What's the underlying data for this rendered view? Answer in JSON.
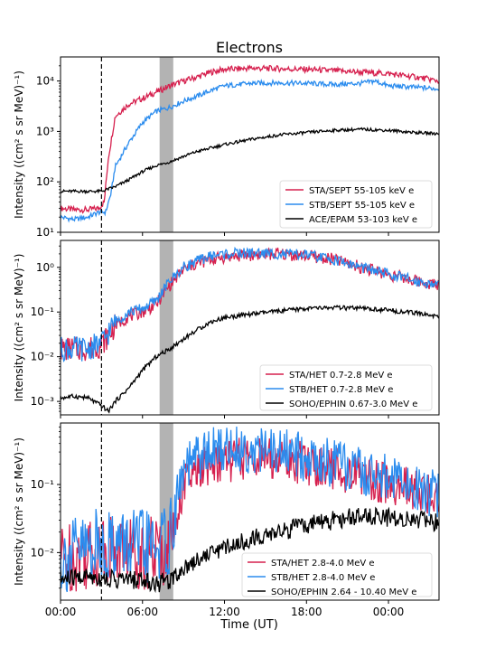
{
  "figure_title": "Electrons",
  "xlabel": "Time (UT)",
  "x_tick_labels": [
    "00:00",
    "06:00",
    "12:00",
    "18:00",
    "00:00"
  ],
  "chart_data": [
    {
      "type": "line",
      "yscale": "log",
      "ylim": [
        10,
        30000
      ],
      "ylabel": "Intensity ((cm² s sr MeV)⁻¹)",
      "y_tick_labels": [
        {
          "value": 10,
          "label": "10¹"
        },
        {
          "value": 100,
          "label": "10²"
        },
        {
          "value": 1000,
          "label": "10³"
        },
        {
          "value": 10000,
          "label": "10⁴"
        }
      ],
      "xlim_hours": [
        0,
        27.7
      ],
      "event_line_hour": 3.0,
      "shaded_band_hours": [
        7.25,
        8.25
      ],
      "legend_position": "lower-right",
      "series": [
        {
          "name": "STA/SEPT 55-105 keV e",
          "color": "#d6204e",
          "x": [
            0,
            1,
            2,
            2.8,
            3.2,
            3.5,
            4,
            5,
            6,
            7,
            8,
            9,
            10,
            11,
            12,
            14,
            16,
            18,
            20,
            22,
            24,
            26,
            27.7
          ],
          "values": [
            30,
            28,
            28,
            30,
            40,
            300,
            2000,
            3500,
            4500,
            6000,
            8000,
            10000,
            12000,
            15000,
            17000,
            18000,
            17500,
            17000,
            16000,
            15000,
            14000,
            12000,
            10000
          ]
        },
        {
          "name": "STB/SEPT 55-105 keV e",
          "color": "#2b8cee",
          "x": [
            0,
            1,
            2,
            2.8,
            3.3,
            3.7,
            4,
            5,
            6,
            7,
            8,
            9,
            10,
            11,
            12,
            14,
            16,
            18,
            20,
            22,
            23,
            24,
            26,
            27.7
          ],
          "values": [
            20,
            18,
            20,
            25,
            25,
            60,
            200,
            600,
            1500,
            2500,
            3000,
            4000,
            5000,
            6500,
            8000,
            9000,
            9200,
            9000,
            8500,
            9000,
            10000,
            8000,
            7500,
            7000
          ]
        },
        {
          "name": "ACE/EPAM 53-103 keV e",
          "color": "#000000",
          "x": [
            0,
            1,
            2,
            3,
            4,
            5,
            6,
            7,
            8,
            9,
            10,
            12,
            14,
            16,
            18,
            20,
            22,
            24,
            26,
            27.7
          ],
          "values": [
            65,
            65,
            65,
            65,
            80,
            110,
            160,
            210,
            250,
            320,
            400,
            550,
            700,
            850,
            950,
            1050,
            1100,
            1050,
            950,
            900
          ]
        }
      ]
    },
    {
      "type": "line",
      "yscale": "log",
      "ylim": [
        0.0005,
        4
      ],
      "ylabel": "Intensity ((cm² s sr MeV)⁻¹)",
      "y_tick_labels": [
        {
          "value": 0.001,
          "label": "10⁻³"
        },
        {
          "value": 0.01,
          "label": "10⁻²"
        },
        {
          "value": 0.1,
          "label": "10⁻¹"
        },
        {
          "value": 1,
          "label": "10⁰"
        }
      ],
      "xlim_hours": [
        0,
        27.7
      ],
      "event_line_hour": 3.0,
      "shaded_band_hours": [
        7.25,
        8.25
      ],
      "legend_position": "lower-right",
      "series": [
        {
          "name": "STA/HET 0.7-2.8 MeV e",
          "color": "#d6204e",
          "x": [
            0,
            1,
            2,
            3,
            4,
            5,
            6,
            7,
            8,
            9,
            10,
            11,
            12,
            14,
            16,
            18,
            20,
            22,
            24,
            26,
            27.7
          ],
          "values": [
            0.015,
            0.015,
            0.015,
            0.018,
            0.05,
            0.08,
            0.1,
            0.15,
            0.4,
            0.9,
            1.2,
            1.5,
            1.7,
            1.9,
            2.0,
            1.8,
            1.5,
            1.0,
            0.7,
            0.5,
            0.4
          ]
        },
        {
          "name": "STB/HET 0.7-2.8 MeV e",
          "color": "#2b8cee",
          "x": [
            0,
            1,
            2,
            3,
            4,
            5,
            6,
            7,
            8,
            9,
            10,
            11,
            12,
            14,
            16,
            18,
            20,
            22,
            24,
            26,
            27.7
          ],
          "values": [
            0.015,
            0.015,
            0.015,
            0.02,
            0.06,
            0.1,
            0.12,
            0.18,
            0.5,
            1.0,
            1.4,
            1.8,
            2.0,
            2.1,
            2.0,
            1.9,
            1.5,
            1.0,
            0.7,
            0.5,
            0.4
          ]
        },
        {
          "name": "SOHO/EPHIN 0.67-3.0 MeV e",
          "color": "#000000",
          "x": [
            0,
            1,
            2,
            3,
            3.5,
            4,
            5,
            6,
            7,
            8,
            9,
            10,
            11,
            12,
            14,
            16,
            18,
            20,
            22,
            24,
            26,
            27.7
          ],
          "values": [
            0.0012,
            0.0013,
            0.0012,
            0.0008,
            0.0006,
            0.001,
            0.002,
            0.005,
            0.01,
            0.015,
            0.025,
            0.04,
            0.06,
            0.075,
            0.09,
            0.105,
            0.12,
            0.125,
            0.12,
            0.11,
            0.095,
            0.08
          ]
        }
      ]
    },
    {
      "type": "line",
      "yscale": "log",
      "ylim": [
        0.002,
        0.8
      ],
      "ylabel": "Intensity ((cm² s sr MeV)⁻¹)",
      "y_tick_labels": [
        {
          "value": 0.01,
          "label": "10⁻²"
        },
        {
          "value": 0.1,
          "label": "10⁻¹"
        }
      ],
      "xlim_hours": [
        0,
        27.7
      ],
      "event_line_hour": 3.0,
      "shaded_band_hours": [
        7.25,
        8.25
      ],
      "legend_position": "lower-right",
      "series": [
        {
          "name": "STA/HET 2.8-4.0 MeV e",
          "color": "#d6204e",
          "x": [
            0,
            2,
            4,
            6,
            7,
            8,
            8.5,
            9,
            10,
            11,
            12,
            14,
            16,
            18,
            20,
            22,
            24,
            26,
            27.7
          ],
          "values": [
            0.008,
            0.01,
            0.012,
            0.01,
            0.01,
            0.012,
            0.04,
            0.1,
            0.15,
            0.2,
            0.22,
            0.25,
            0.24,
            0.2,
            0.17,
            0.14,
            0.1,
            0.08,
            0.06
          ]
        },
        {
          "name": "STB/HET 2.8-4.0 MeV e",
          "color": "#2b8cee",
          "x": [
            0,
            2,
            4,
            6,
            7,
            8,
            8.5,
            9,
            10,
            11,
            12,
            14,
            16,
            18,
            20,
            22,
            24,
            26,
            27.7
          ],
          "values": [
            0.008,
            0.012,
            0.014,
            0.012,
            0.012,
            0.015,
            0.06,
            0.15,
            0.25,
            0.3,
            0.35,
            0.32,
            0.3,
            0.25,
            0.2,
            0.15,
            0.12,
            0.09,
            0.07
          ]
        },
        {
          "name": "SOHO/EPHIN 2.64 - 10.40 MeV e",
          "color": "#000000",
          "x": [
            0,
            2,
            4,
            6,
            7,
            8,
            9,
            10,
            11,
            12,
            14,
            16,
            18,
            20,
            22,
            24,
            26,
            27.7
          ],
          "values": [
            0.004,
            0.0045,
            0.004,
            0.004,
            0.0035,
            0.004,
            0.006,
            0.008,
            0.01,
            0.012,
            0.016,
            0.02,
            0.025,
            0.03,
            0.035,
            0.033,
            0.03,
            0.028
          ]
        }
      ]
    }
  ]
}
